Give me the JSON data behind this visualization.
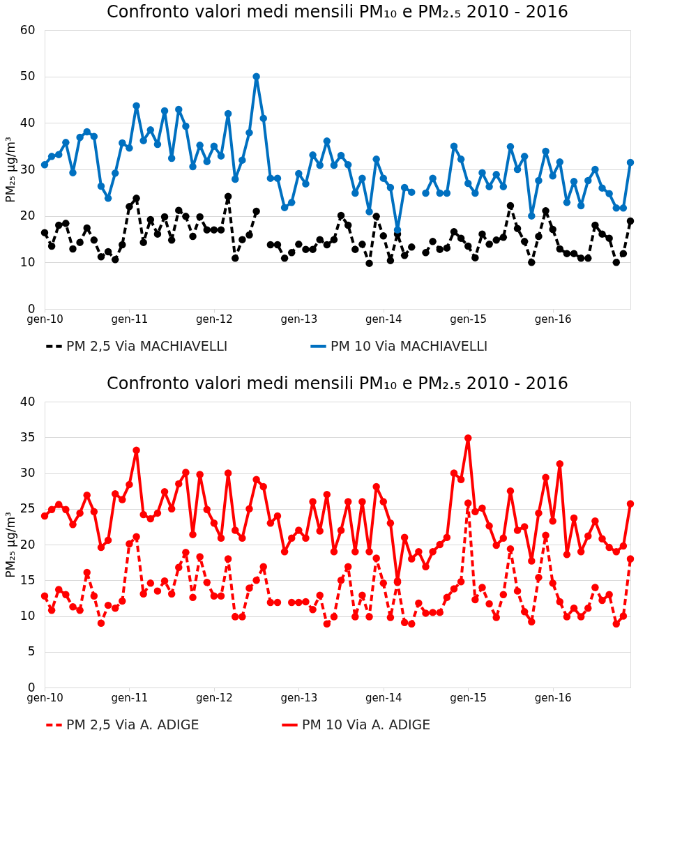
{
  "chart_data": [
    {
      "type": "line",
      "title": "Confronto valori medi mensili PM₁₀ e PM₂.₅ 2010 - 2016",
      "ylabel": "PM₂₅ µg/m³",
      "categories": [
        "gen-10",
        null,
        null,
        null,
        null,
        null,
        null,
        null,
        null,
        null,
        null,
        null,
        "gen-11",
        null,
        null,
        null,
        null,
        null,
        null,
        null,
        null,
        null,
        null,
        null,
        "gen-12",
        null,
        null,
        null,
        null,
        null,
        null,
        null,
        null,
        null,
        null,
        null,
        "gen-13",
        null,
        null,
        null,
        null,
        null,
        null,
        null,
        null,
        null,
        null,
        null,
        "gen-14",
        null,
        null,
        null,
        null,
        null,
        null,
        null,
        null,
        null,
        null,
        null,
        "gen-15",
        null,
        null,
        null,
        null,
        null,
        null,
        null,
        null,
        null,
        null,
        null,
        "gen-16",
        null,
        null,
        null,
        null,
        null,
        null,
        null,
        null,
        null,
        null,
        null
      ],
      "ylim": [
        0,
        60
      ],
      "yticks": [
        0,
        10,
        20,
        30,
        40,
        50,
        60
      ],
      "grid": "y",
      "legend": "bottom",
      "marker": "circle",
      "series": [
        {
          "name": "PM 2,5 Via MACHIAVELLI",
          "color": "#000000",
          "line_style": "dashed",
          "values": [
            16.4,
            13.5,
            18.0,
            18.4,
            12.9,
            14.3,
            17.4,
            14.8,
            11.2,
            12.3,
            10.6,
            13.8,
            22.0,
            23.8,
            14.3,
            19.2,
            16.1,
            19.8,
            14.8,
            21.2,
            19.9,
            15.6,
            19.8,
            17.0,
            17.0,
            17.0,
            24.2,
            10.9,
            14.9,
            15.9,
            21.0,
            null,
            13.8,
            13.8,
            10.9,
            12.1,
            13.9,
            12.8,
            12.8,
            14.9,
            13.8,
            14.9,
            20.1,
            18.0,
            12.8,
            13.9,
            9.8,
            19.9,
            15.7,
            10.4,
            16.1,
            11.5,
            13.3,
            null,
            12.1,
            14.5,
            12.8,
            13.1,
            16.6,
            15.2,
            13.5,
            11.0,
            16.1,
            13.9,
            14.8,
            15.4,
            22.2,
            17.3,
            14.5,
            10.0,
            15.6,
            21.1,
            17.1,
            12.9,
            11.9,
            11.9,
            10.9,
            10.9,
            18.0,
            16.1,
            15.2,
            10.0,
            11.9,
            18.9
          ]
        },
        {
          "name": "PM 10 Via MACHIAVELLI",
          "color": "#0070c0",
          "line_style": "solid",
          "values": [
            31.0,
            32.8,
            33.2,
            35.8,
            29.3,
            36.9,
            38.1,
            37.1,
            26.4,
            23.8,
            29.2,
            35.7,
            34.6,
            43.7,
            36.2,
            38.5,
            35.4,
            42.6,
            32.4,
            42.9,
            39.3,
            30.6,
            35.2,
            31.7,
            35.0,
            32.9,
            42.0,
            27.9,
            32.0,
            37.9,
            50.0,
            41.0,
            28.1,
            28.1,
            21.8,
            22.9,
            29.1,
            26.9,
            33.1,
            30.9,
            36.1,
            30.9,
            33.0,
            31.0,
            24.9,
            28.1,
            20.9,
            32.2,
            28.1,
            26.1,
            17.0,
            26.1,
            25.1,
            null,
            24.9,
            28.1,
            24.9,
            24.9,
            35.0,
            32.2,
            27.0,
            24.9,
            29.3,
            26.3,
            28.9,
            26.3,
            34.9,
            30.0,
            32.8,
            20.0,
            27.6,
            33.9,
            28.6,
            31.6,
            22.9,
            27.4,
            22.2,
            27.6,
            30.0,
            26.0,
            24.8,
            21.7,
            21.7,
            31.5
          ]
        }
      ]
    },
    {
      "type": "line",
      "title": "Confronto valori medi mensili PM₁₀ e PM₂.₅ 2010 - 2016",
      "ylabel": "PM₂₅ µg/m³",
      "categories": [
        "gen-10",
        null,
        null,
        null,
        null,
        null,
        null,
        null,
        null,
        null,
        null,
        null,
        "gen-11",
        null,
        null,
        null,
        null,
        null,
        null,
        null,
        null,
        null,
        null,
        null,
        "gen-12",
        null,
        null,
        null,
        null,
        null,
        null,
        null,
        null,
        null,
        null,
        null,
        "gen-13",
        null,
        null,
        null,
        null,
        null,
        null,
        null,
        null,
        null,
        null,
        null,
        "gen-14",
        null,
        null,
        null,
        null,
        null,
        null,
        null,
        null,
        null,
        null,
        null,
        "gen-15",
        null,
        null,
        null,
        null,
        null,
        null,
        null,
        null,
        null,
        null,
        null,
        "gen-16",
        null,
        null,
        null,
        null,
        null,
        null,
        null,
        null,
        null,
        null,
        null
      ],
      "ylim": [
        0,
        40
      ],
      "yticks": [
        0,
        5,
        10,
        15,
        20,
        25,
        30,
        35,
        40
      ],
      "grid": "y",
      "legend": "bottom",
      "marker": "circle",
      "series": [
        {
          "name": "PM 2,5 Via A. ADIGE",
          "color": "#ff0000",
          "line_style": "dashed",
          "values": [
            12.8,
            10.8,
            13.7,
            13.0,
            11.3,
            10.8,
            16.1,
            12.8,
            9.0,
            11.5,
            11.1,
            12.1,
            20.1,
            21.1,
            13.1,
            14.6,
            13.5,
            14.9,
            13.1,
            16.8,
            18.9,
            12.6,
            18.3,
            14.7,
            12.8,
            12.8,
            18.0,
            9.9,
            9.9,
            13.9,
            15.0,
            16.9,
            11.9,
            11.9,
            null,
            11.9,
            11.9,
            12.0,
            10.9,
            12.9,
            8.9,
            9.9,
            15.0,
            16.9,
            9.9,
            12.9,
            9.9,
            18.1,
            14.6,
            9.8,
            14.7,
            9.1,
            8.9,
            11.8,
            10.4,
            10.5,
            10.5,
            12.6,
            13.8,
            14.8,
            25.8,
            12.3,
            14.0,
            11.7,
            9.8,
            13.0,
            19.4,
            13.5,
            10.6,
            9.2,
            15.4,
            21.3,
            14.6,
            12.0,
            9.9,
            11.1,
            9.9,
            11.1,
            14.0,
            12.2,
            13.0,
            8.9,
            10.0,
            18.0
          ]
        },
        {
          "name": "PM 10 Via A. ADIGE",
          "color": "#ff0000",
          "line_style": "solid",
          "values": [
            24.0,
            24.9,
            25.6,
            24.9,
            22.8,
            24.4,
            26.9,
            24.6,
            19.6,
            20.6,
            27.1,
            26.3,
            28.4,
            33.2,
            24.2,
            23.6,
            24.4,
            27.4,
            25.0,
            28.5,
            30.1,
            21.4,
            29.8,
            24.9,
            23.0,
            20.9,
            30.0,
            22.0,
            20.9,
            25.0,
            29.1,
            28.1,
            23.0,
            24.0,
            19.0,
            20.9,
            22.0,
            20.9,
            26.0,
            21.9,
            27.0,
            19.0,
            22.0,
            26.0,
            19.0,
            26.0,
            19.0,
            28.1,
            26.0,
            23.0,
            14.9,
            21.0,
            18.0,
            19.0,
            16.9,
            19.0,
            20.0,
            21.0,
            30.0,
            29.1,
            34.9,
            24.6,
            25.1,
            22.6,
            19.9,
            20.9,
            27.5,
            22.0,
            22.5,
            17.7,
            24.4,
            29.4,
            23.3,
            31.3,
            18.6,
            23.7,
            19.0,
            21.2,
            23.3,
            20.8,
            19.6,
            19.0,
            19.8,
            25.7
          ]
        }
      ]
    }
  ]
}
